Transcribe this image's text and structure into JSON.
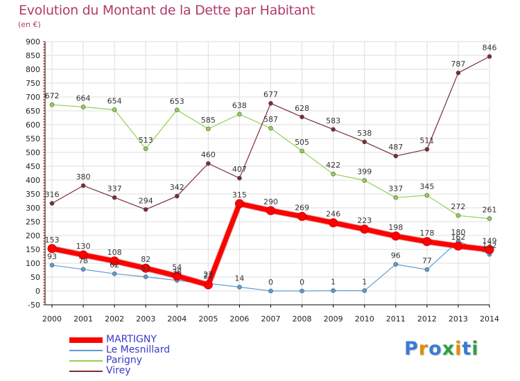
{
  "title": "Evolution du Montant de la Dette par Habitant",
  "subtitle": "(en €)",
  "logo_text": "Proxiti",
  "chart_data": {
    "type": "line",
    "title": "Evolution du Montant de la Dette par Habitant",
    "ylabel": "(en €)",
    "xlabel": "",
    "x": [
      "2000",
      "2001",
      "2002",
      "2003",
      "2004",
      "2005",
      "2006",
      "2007",
      "2008",
      "2009",
      "2010",
      "2011",
      "2012",
      "2013",
      "2014"
    ],
    "ylim": [
      -50,
      900
    ],
    "yticks": [
      -50,
      0,
      50,
      100,
      150,
      200,
      250,
      300,
      350,
      400,
      450,
      500,
      550,
      600,
      650,
      700,
      750,
      800,
      850,
      900
    ],
    "grid": true,
    "legend": "bottom-left",
    "series": [
      {
        "name": "MARTIGNY",
        "color": "#ff0000",
        "values": [
          153,
          130,
          108,
          82,
          54,
          22,
          315,
          290,
          269,
          246,
          223,
          198,
          178,
          162,
          149
        ],
        "labels": [
          "153",
          "130",
          "108",
          "82",
          "54",
          "22",
          "315",
          "290",
          "269",
          "246",
          "223",
          "198",
          "178",
          "162",
          "149"
        ]
      },
      {
        "name": "Le Mesnillard",
        "color": "#5b9bd5",
        "values": [
          93,
          78,
          62,
          51,
          38,
          27,
          14,
          0,
          0,
          1,
          1,
          96,
          77,
          180,
          132
        ],
        "labels": [
          "93",
          "78",
          "62",
          "51",
          "38",
          "27",
          "14",
          "0",
          "0",
          "1",
          "1",
          "96",
          "77",
          "180",
          "132"
        ]
      },
      {
        "name": "Parigny",
        "color": "#92d050",
        "values": [
          672,
          664,
          654,
          513,
          653,
          585,
          638,
          587,
          505,
          422,
          399,
          337,
          345,
          272,
          261
        ],
        "labels": [
          "672",
          "664",
          "654",
          "513",
          "653",
          "585",
          "638",
          "587",
          "505",
          "422",
          "399",
          "337",
          "345",
          "272",
          "261"
        ]
      },
      {
        "name": "Virey",
        "color": "#7b2c33",
        "values": [
          316,
          380,
          337,
          294,
          342,
          460,
          407,
          677,
          628,
          583,
          538,
          487,
          511,
          787,
          846
        ],
        "labels": [
          "316",
          "380",
          "337",
          "294",
          "342",
          "460",
          "407",
          "677",
          "628",
          "583",
          "538",
          "487",
          "511",
          "787",
          "846"
        ]
      }
    ]
  },
  "colors": {
    "title": "#b03a6a",
    "axis": "#000000",
    "grid": "#dddddd",
    "tick_marks": "#cc0000"
  }
}
